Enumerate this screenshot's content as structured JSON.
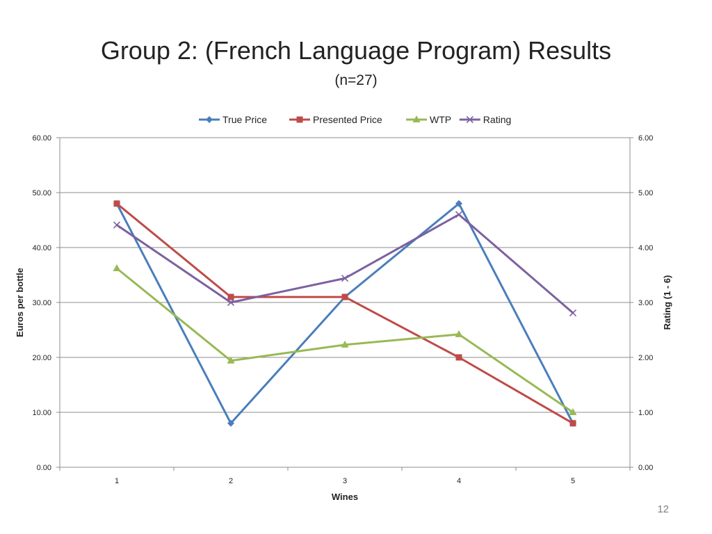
{
  "slide": {
    "title": "Group 2: (French Language Program) Results",
    "subtitle": "(n=27)",
    "page_number": "12"
  },
  "chart_data": {
    "type": "line",
    "categories": [
      "1",
      "2",
      "3",
      "4",
      "5"
    ],
    "xlabel": "Wines",
    "ylabel": "Euros per bottle",
    "ylabel_right": "Rating (1 - 6)",
    "ylim": [
      0,
      60
    ],
    "ylim_right": [
      0,
      6
    ],
    "yticks": [
      "0.00",
      "10.00",
      "20.00",
      "30.00",
      "40.00",
      "50.00",
      "60.00"
    ],
    "yticks_right": [
      "0.00",
      "1.00",
      "2.00",
      "3.00",
      "4.00",
      "5.00",
      "6.00"
    ],
    "grid": true,
    "legend_position": "top",
    "series": [
      {
        "name": "True Price",
        "axis": "left",
        "marker": "diamond",
        "color": "#4a7ebb",
        "values": [
          48,
          8,
          31,
          48,
          8
        ]
      },
      {
        "name": "Presented Price",
        "axis": "left",
        "marker": "square",
        "color": "#be4b48",
        "values": [
          48,
          31,
          31,
          20,
          8
        ]
      },
      {
        "name": "WTP",
        "axis": "left",
        "marker": "triangle",
        "color": "#98b954",
        "values": [
          36.2,
          19.4,
          22.3,
          24.2,
          10
        ]
      },
      {
        "name": "Rating",
        "axis": "right",
        "marker": "x",
        "color": "#7d60a0",
        "values": [
          4.41,
          3.0,
          3.44,
          4.6,
          2.81
        ]
      }
    ]
  }
}
